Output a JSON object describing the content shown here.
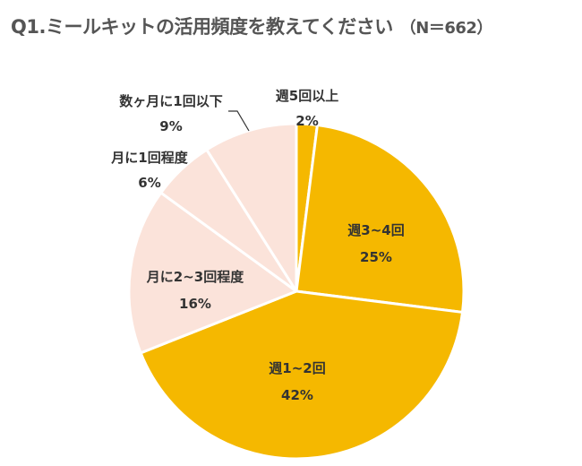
{
  "title": "Q1.ミールキットの活用頻度を教えてください",
  "sample_size": "（N＝662）",
  "chart_data": {
    "type": "pie",
    "title": "Q1.ミールキットの活用頻度を教えてください",
    "subtitle": "（N＝662）",
    "slices": [
      {
        "label": "週5回以上",
        "value": 2,
        "display": "2%",
        "color": "#F5B800"
      },
      {
        "label": "週3~4回",
        "value": 25,
        "display": "25%",
        "color": "#F5B800"
      },
      {
        "label": "週1~2回",
        "value": 42,
        "display": "42%",
        "color": "#F5B800"
      },
      {
        "label": "月に2~3回程度",
        "value": 16,
        "display": "16%",
        "color": "#FBE3DA"
      },
      {
        "label": "月に1回程度",
        "value": 6,
        "display": "6%",
        "color": "#FBE3DA"
      },
      {
        "label": "数ヶ月に1回以下",
        "value": 9,
        "display": "9%",
        "color": "#FBE3DA"
      }
    ],
    "start": "12 o'clock",
    "direction": "clockwise"
  }
}
